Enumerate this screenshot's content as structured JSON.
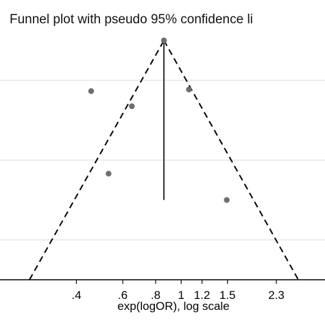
{
  "chart_data": {
    "type": "scatter",
    "title": "Funnel plot with pseudo 95% confidence li",
    "xlabel": "exp(logOR), log scale",
    "ylabel": "",
    "x_scale": "log",
    "x_ticks": [
      {
        "value": 0.4,
        "label": ".4"
      },
      {
        "value": 0.6,
        "label": ".6"
      },
      {
        "value": 0.8,
        "label": ".8"
      },
      {
        "value": 1.0,
        "label": "1"
      },
      {
        "value": 1.2,
        "label": "1.2"
      },
      {
        "value": 1.5,
        "label": "1.5"
      },
      {
        "value": 2.3,
        "label": "2.3"
      }
    ],
    "xlim": [
      0.205,
      3.52
    ],
    "ylim": [
      0.0,
      0.6
    ],
    "y_reversed": true,
    "grid": true,
    "pooled_estimate": 0.86,
    "ci_level": "95%",
    "ci_slope_z": 1.96,
    "points": [
      {
        "x": 0.455,
        "y": 0.127
      },
      {
        "x": 0.65,
        "y": 0.165
      },
      {
        "x": 1.07,
        "y": 0.123
      },
      {
        "x": 0.53,
        "y": 0.334
      },
      {
        "x": 0.86,
        "y": 0.0
      },
      {
        "x": 1.49,
        "y": 0.4
      }
    ],
    "colors": {
      "point": "#6e6e6e",
      "line": "#000000",
      "grid": "#dcdcdc",
      "axis": "#000000"
    }
  }
}
